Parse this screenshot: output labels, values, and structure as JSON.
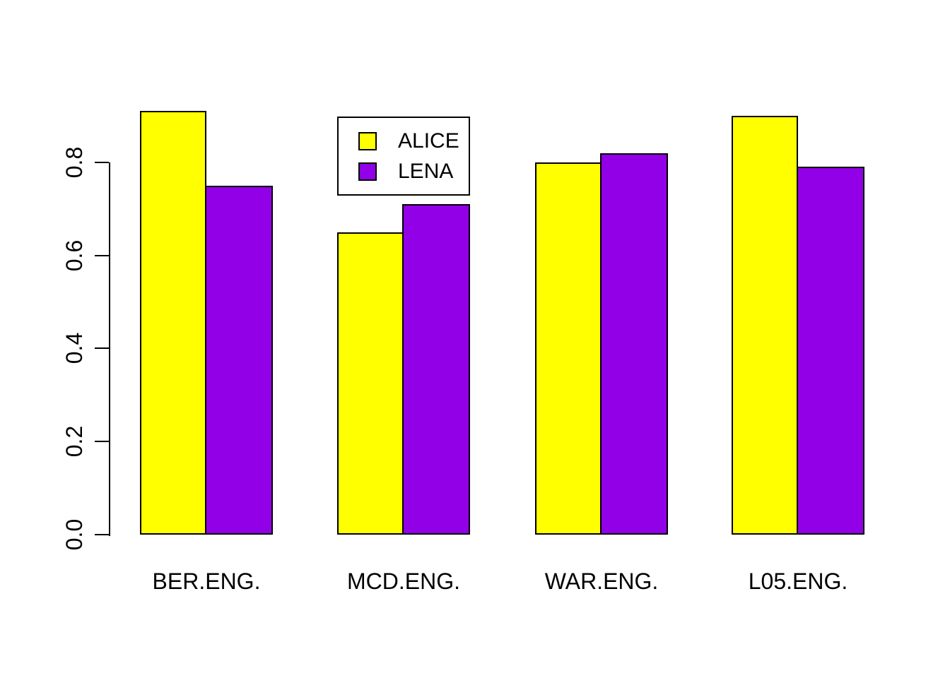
{
  "chart_data": {
    "type": "bar",
    "title": "",
    "xlabel": "",
    "ylabel": "",
    "categories": [
      "BER.ENG.",
      "MCD.ENG.",
      "WAR.ENG.",
      "L05.ENG."
    ],
    "series": [
      {
        "name": "ALICE",
        "color": "#FFFF00",
        "values": [
          0.91,
          0.65,
          0.8,
          0.9
        ]
      },
      {
        "name": "LENA",
        "color": "#9100E6",
        "values": [
          0.75,
          0.71,
          0.82,
          0.79
        ]
      }
    ],
    "ylim": [
      0.0,
      0.95
    ],
    "yticks": [
      "0.0",
      "0.2",
      "0.4",
      "0.6",
      "0.8"
    ],
    "grid": false,
    "bar_border_color": "#000000",
    "axis_color": "#000000",
    "background_color": "#FFFFFF",
    "legend": {
      "position": "top-center-inside",
      "entries": [
        "ALICE",
        "LENA"
      ]
    }
  }
}
